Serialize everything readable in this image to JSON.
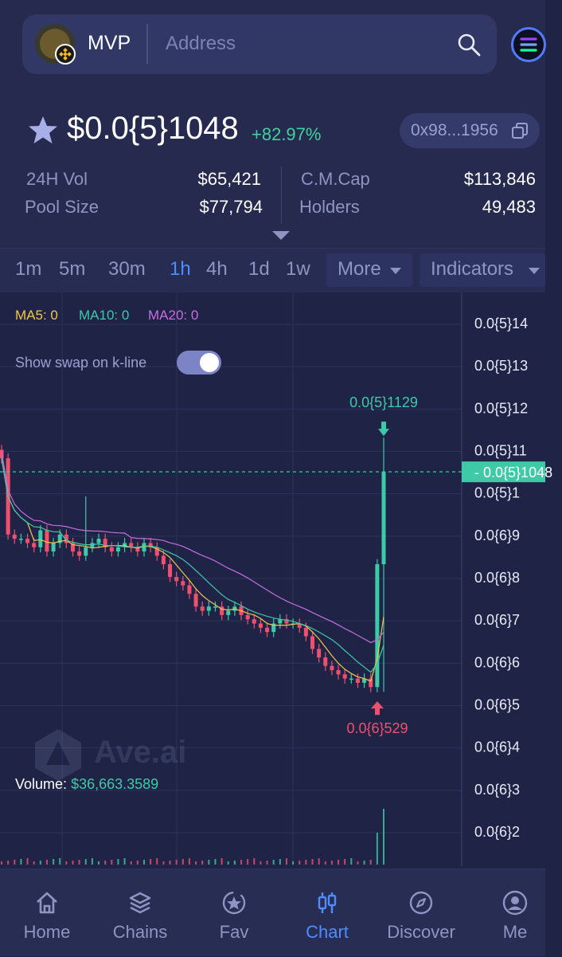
{
  "header": {
    "token_name": "MVP",
    "search_placeholder": "Address"
  },
  "token": {
    "price": "$0.0{5}1048",
    "change": "+82.97%",
    "contract_short": "0x98...1956",
    "stats": {
      "vol_label": "24H Vol",
      "vol_value": "$65,421",
      "pool_label": "Pool Size",
      "pool_value": "$77,794",
      "mcap_label": "C.M.Cap",
      "mcap_value": "$113,846",
      "holders_label": "Holders",
      "holders_value": "49,483"
    }
  },
  "tabs": {
    "intervals": [
      "1m",
      "5m",
      "30m",
      "1h",
      "4h",
      "1d",
      "1w"
    ],
    "active": "1h",
    "more_label": "More",
    "indicators_label": "Indicators"
  },
  "chart_controls": {
    "ma5": "MA5: 0",
    "ma10": "MA10: 0",
    "ma20": "MA20: 0",
    "show_swap_label": "Show swap on k-line",
    "show_swap_on": true,
    "volume_label": "Volume:",
    "volume_value": "$36,663.3589",
    "watermark": "Ave.ai"
  },
  "chart_data": {
    "type": "candlestick",
    "y_tick_labels": [
      "0.0{5}14",
      "0.0{5}13",
      "0.0{5}12",
      "0.0{5}11",
      "0.0{5}1",
      "0.0{6}9",
      "0.0{6}8",
      "0.0{6}7",
      "0.0{6}6",
      "0.0{6}5",
      "0.0{6}4",
      "0.0{6}3",
      "0.0{6}2"
    ],
    "y_tick_values": [
      14,
      13,
      12,
      11,
      10,
      9,
      8,
      7,
      6,
      5,
      4,
      3,
      2
    ],
    "ylim": [
      1.5,
      14.4
    ],
    "current_price_label": "0.0{5}1048",
    "current_price": 10.48,
    "high_label": "0.0{5}1129",
    "high": 11.29,
    "low_label": "0.0{6}529",
    "low": 5.29,
    "close_series": [
      10.8,
      9.0,
      8.9,
      8.9,
      8.8,
      8.7,
      9.1,
      8.6,
      8.8,
      9.0,
      8.8,
      8.6,
      8.5,
      8.7,
      8.8,
      8.9,
      8.7,
      8.6,
      8.7,
      8.8,
      8.7,
      8.6,
      8.8,
      8.7,
      8.5,
      8.3,
      8.0,
      7.9,
      7.8,
      7.6,
      7.3,
      7.2,
      7.3,
      7.3,
      7.1,
      7.2,
      7.3,
      7.1,
      7.0,
      6.9,
      6.8,
      6.7,
      6.9,
      7.0,
      6.9,
      6.9,
      6.8,
      6.6,
      6.3,
      6.1,
      5.9,
      5.8,
      5.7,
      5.6,
      5.6,
      5.5,
      5.6,
      5.4,
      8.3,
      10.48
    ],
    "series": [
      {
        "name": "MA5",
        "color": "#f2c44d"
      },
      {
        "name": "MA10",
        "color": "#3ec9a7"
      },
      {
        "name": "MA20",
        "color": "#c86de0"
      }
    ],
    "grid": true
  },
  "nav": {
    "items": [
      {
        "label": "Home",
        "icon": "home-icon"
      },
      {
        "label": "Chains",
        "icon": "layers-icon"
      },
      {
        "label": "Fav",
        "icon": "favorite-star-icon"
      },
      {
        "label": "Chart",
        "icon": "candlestick-icon"
      },
      {
        "label": "Discover",
        "icon": "compass-icon"
      },
      {
        "label": "Me",
        "icon": "user-icon"
      }
    ],
    "active": "Chart"
  },
  "colors": {
    "bg": "#1f2447",
    "panel": "#252a4e",
    "up": "#3ec9a7",
    "down": "#f0506e",
    "accent": "#4f8dff"
  }
}
